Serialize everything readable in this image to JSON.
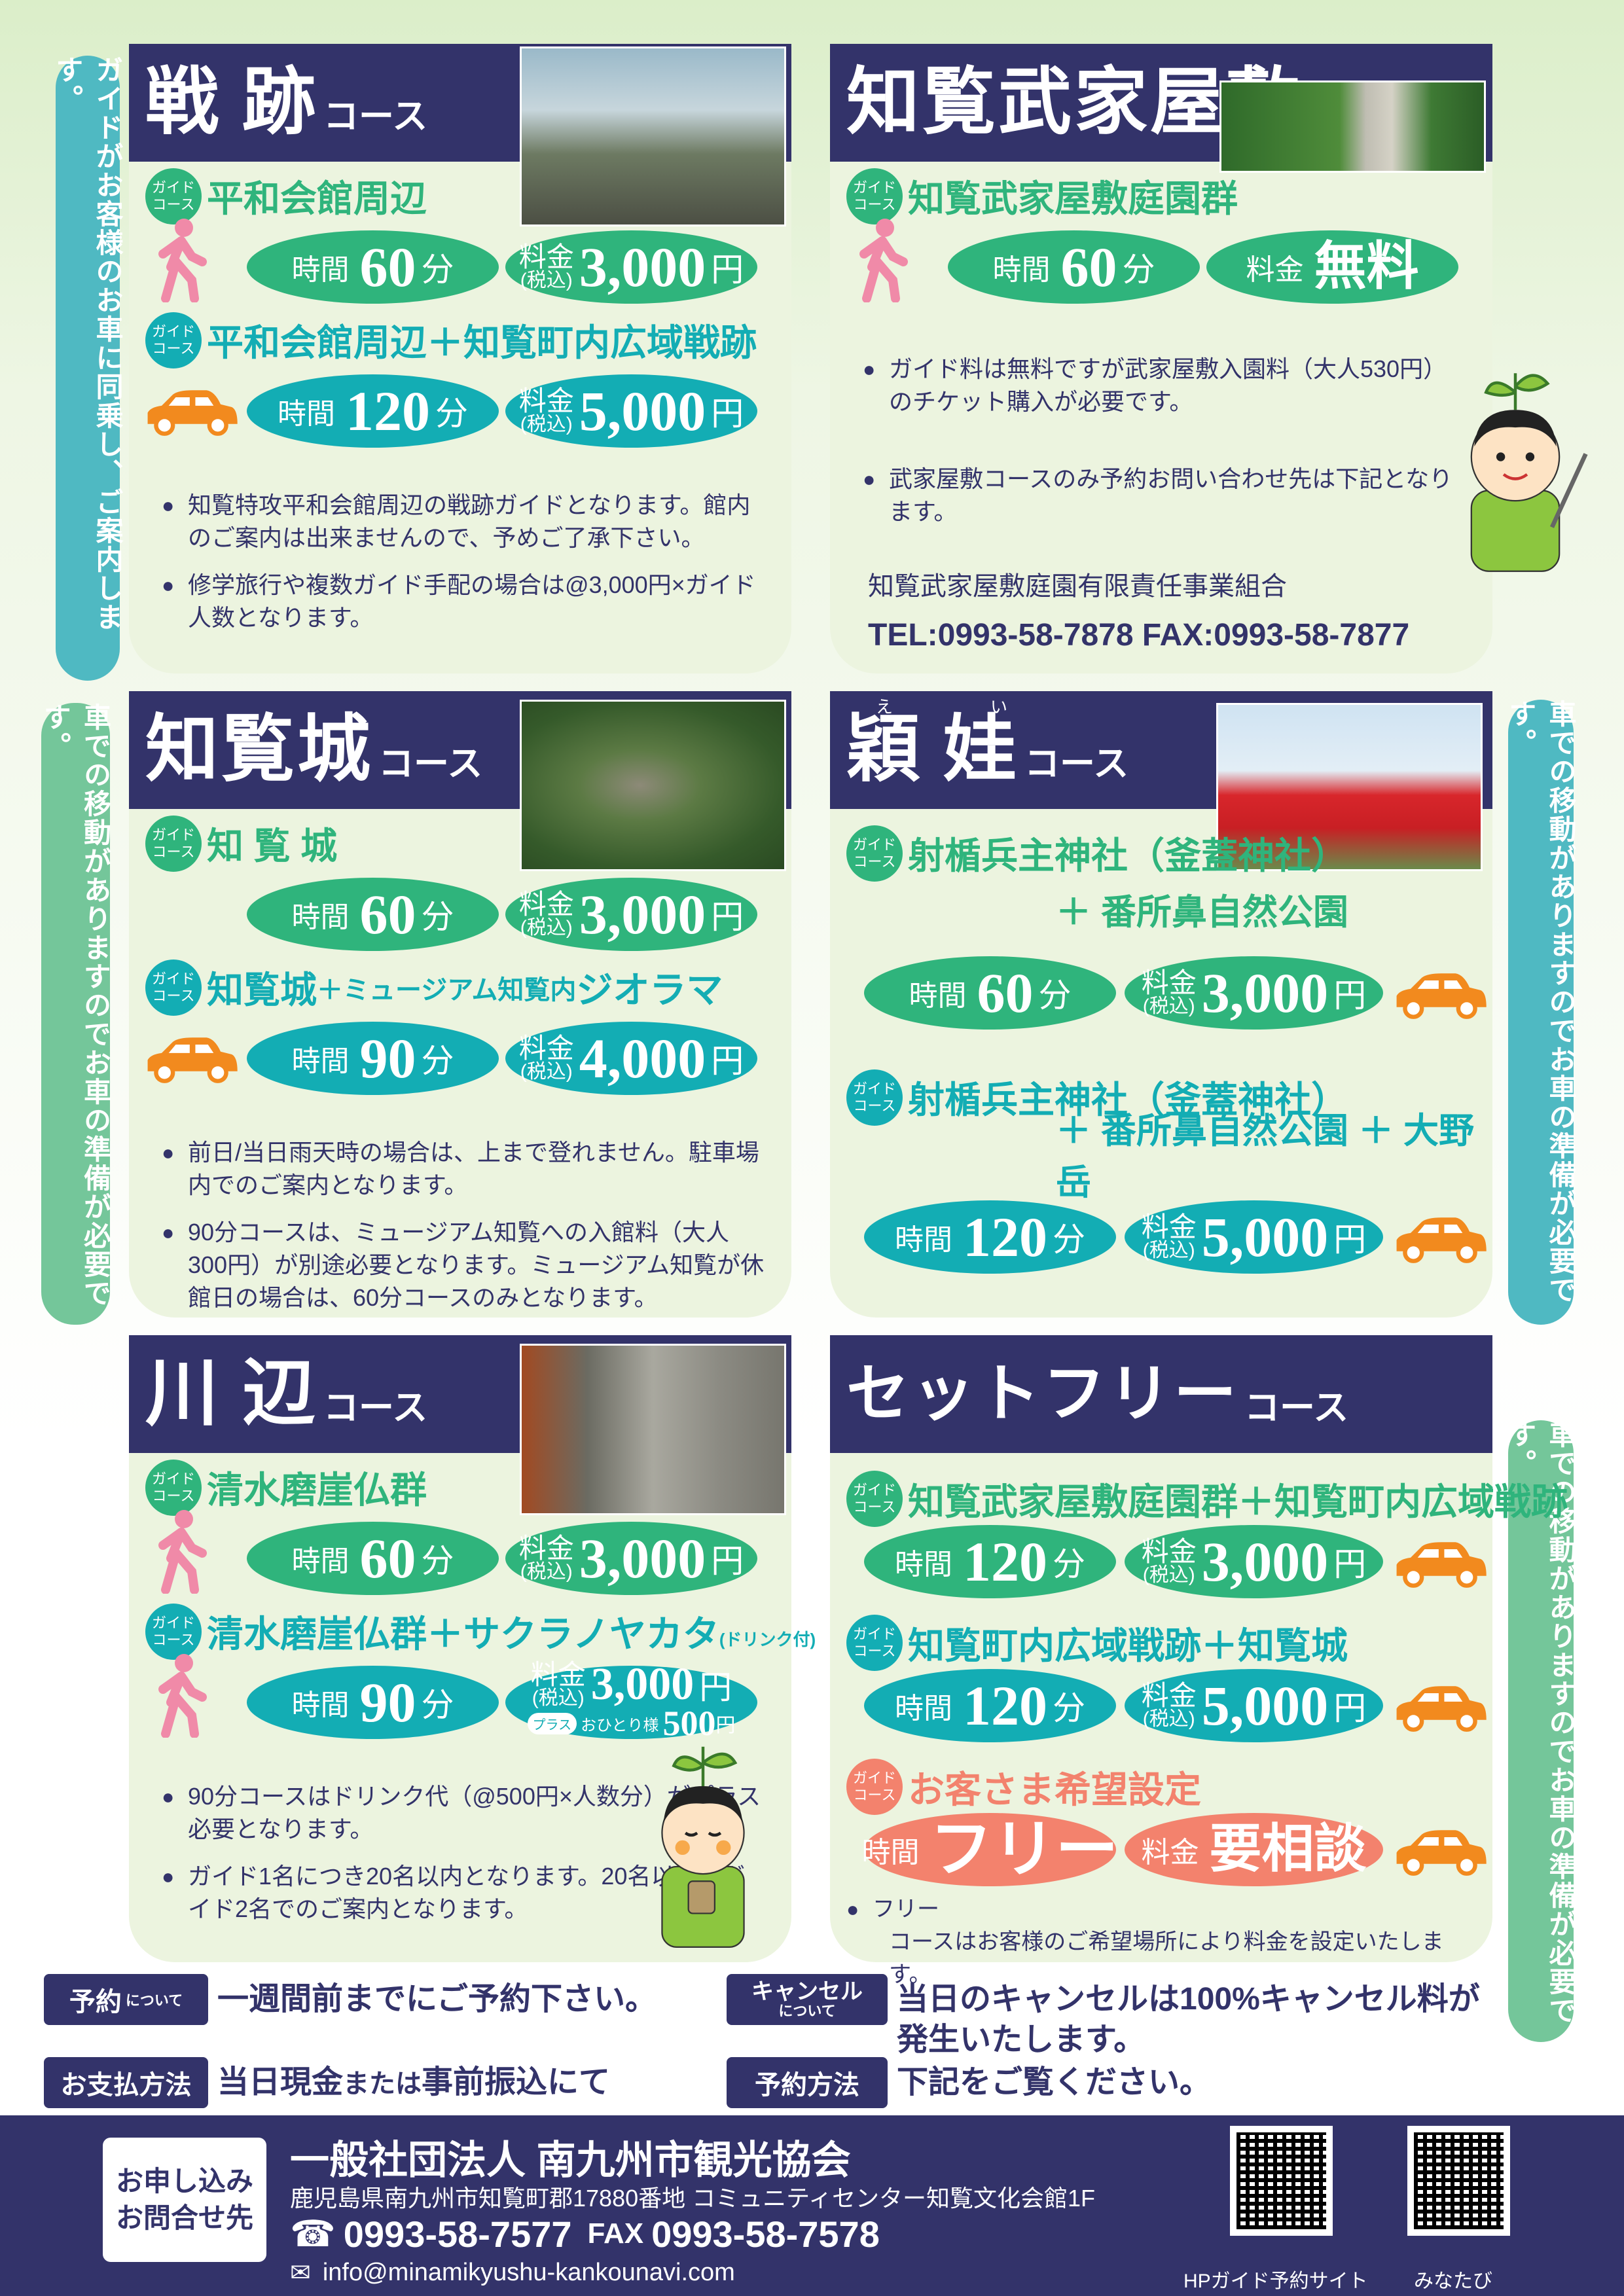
{
  "colors": {
    "navy": "#33336a",
    "green": "#2fb47c",
    "teal": "#13adb4",
    "salmon": "#f3826d",
    "car": "#f28a1e",
    "walker": "#f08aa8",
    "card_bg": "#ecf4df"
  },
  "side_notes": {
    "guide_ride": "ガイドがお客様のお車に同乗し、ご案内します。",
    "car_needed": "車での移動がありますのでお車の準備が必要です。"
  },
  "cards": [
    {
      "title": "戦 跡",
      "suffix": "コース",
      "photo": "fighter-plane-photo",
      "photo_class": "plane",
      "courses": [
        {
          "badge": [
            "ガイド",
            "コース"
          ],
          "title": "平和会館周辺",
          "color": "green",
          "icon": "walking-person-icon",
          "icon_pos": "left-walk",
          "row": "l180",
          "time_label": "時間",
          "time": "60",
          "time_unit": "分",
          "fee_label": "料金",
          "fee_tax": "(税込)",
          "fee": "3,000",
          "fee_unit": "円"
        },
        {
          "badge": [
            "ガイド",
            "コース"
          ],
          "title": "平和会館周辺＋知覧町内広域戦跡",
          "color": "teal",
          "icon": "car-icon",
          "icon_pos": "left-car",
          "row": "l180",
          "time_label": "時間",
          "time": "120",
          "time_unit": "分",
          "fee_label": "料金",
          "fee_tax": "(税込)",
          "fee": "5,000",
          "fee_unit": "円"
        }
      ],
      "notes": [
        "知覧特攻平和会館周辺の戦跡ガイドとなります。館内のご案内は出来ませんので、予めご了承下さい。",
        "修学旅行や複数ガイド手配の場合は@3,000円×ガイド人数となります。"
      ]
    },
    {
      "title": "知覧武家屋敷",
      "suffix": "コース",
      "photo": "samurai-residence-garden-photo",
      "photo_class": "garden",
      "courses": [
        {
          "badge": [
            "ガイド",
            "コース"
          ],
          "title": "知覧武家屋敷庭園群",
          "color": "green",
          "icon": "walking-person-icon",
          "icon_pos": "left-walk",
          "row": "l180",
          "time_label": "時間",
          "time": "60",
          "time_unit": "分",
          "fee_label": "料金",
          "fee": "無料"
        }
      ],
      "notes": [
        "ガイド料は無料ですが武家屋敷入園料（大人530円）のチケット購入が必要です。",
        "武家屋敷コースのみ予約お問い合わせ先は下記となります。"
      ],
      "contact": {
        "org": "知覧武家屋敷庭園有限責任事業組合",
        "tel": "TEL:0993-58-7878",
        "fax": "FAX:0993-58-7877"
      }
    },
    {
      "title": "知覧城",
      "suffix": "コース",
      "photo": "chiran-castle-aerial-photo",
      "photo_class": "castle",
      "courses": [
        {
          "badge": [
            "ガイド",
            "コース"
          ],
          "title": "知 覧 城",
          "color": "green",
          "row": "l180",
          "time_label": "時間",
          "time": "60",
          "time_unit": "分",
          "fee_label": "料金",
          "fee_tax": "(税込)",
          "fee": "3,000",
          "fee_unit": "円"
        },
        {
          "badge": [
            "ガイド",
            "コース"
          ],
          "title": "知覧城",
          "title_mid": "＋ミュージアム知覧内",
          "title_end": "ジオラマ",
          "color": "teal",
          "icon": "car-icon",
          "icon_pos": "left-car",
          "row": "l180",
          "time_label": "時間",
          "time": "90",
          "time_unit": "分",
          "fee_label": "料金",
          "fee_tax": "(税込)",
          "fee": "4,000",
          "fee_unit": "円"
        }
      ],
      "notes": [
        "前日/当日雨天時の場合は、上まで登れません。駐車場内でのご案内となります。",
        "90分コースは、ミュージアム知覧への入館料（大人300円）が別途必要となります。ミュージアム知覧が休館日の場合は、60分コースのみとなります。"
      ]
    },
    {
      "title": "穎 娃",
      "ruby": [
        "え",
        "い"
      ],
      "suffix": "コース",
      "photo": "kamafuta-shrine-photo",
      "photo_class": "shrine",
      "courses": [
        {
          "badge": [
            "ガイド",
            "コース"
          ],
          "title": "射楯兵主神社（釜蓋神社）",
          "line2": "＋ 番所鼻自然公園",
          "color": "green",
          "icon": "car-icon",
          "icon_pos": "right-car",
          "row": "l52",
          "time_label": "時間",
          "time": "60",
          "time_unit": "分",
          "fee_label": "料金",
          "fee_tax": "(税込)",
          "fee": "3,000",
          "fee_unit": "円"
        },
        {
          "badge": [
            "ガイド",
            "コース"
          ],
          "title": "射楯兵主神社（釜蓋神社）",
          "line2": "＋ 番所鼻自然公園 ＋ 大野岳",
          "color": "teal",
          "icon": "car-icon",
          "icon_pos": "right-car",
          "row": "l52",
          "time_label": "時間",
          "time": "120",
          "time_unit": "分",
          "fee_label": "料金",
          "fee_tax": "(税込)",
          "fee": "5,000",
          "fee_unit": "円"
        }
      ]
    },
    {
      "title": "川 辺",
      "suffix": "コース",
      "photo": "shimizu-cliff-buddha-photo",
      "photo_class": "cliff",
      "courses": [
        {
          "badge": [
            "ガイド",
            "コース"
          ],
          "title": "清水磨崖仏群",
          "color": "green",
          "icon": "walking-person-icon",
          "icon_pos": "left-walk",
          "row": "l180",
          "time_label": "時間",
          "time": "60",
          "time_unit": "分",
          "fee_label": "料金",
          "fee_tax": "(税込)",
          "fee": "3,000",
          "fee_unit": "円"
        },
        {
          "badge": [
            "ガイド",
            "コース"
          ],
          "title": "清水磨崖仏群＋サクラノヤカタ",
          "title_tiny": "(ドリンク付)",
          "color": "teal",
          "icon": "walking-person-icon",
          "icon_pos": "left-walk",
          "row": "l180",
          "time_label": "時間",
          "time": "90",
          "time_unit": "分",
          "fee_label": "料金",
          "fee_tax": "(税込)",
          "fee": "3,000",
          "fee_unit": "円",
          "plus": {
            "label": "プラス",
            "per_person": "おひとり様",
            "value": "500",
            "unit": "円"
          }
        }
      ],
      "notes": [
        "90分コースはドリンク代（@500円×人数分）がプラス必要となります。",
        "ガイド1名につき20名以内となります。20名以上はガイド2名でのご案内となります。"
      ]
    },
    {
      "title": "セットフリー",
      "suffix": "コース",
      "courses": [
        {
          "badge": [
            "ガイド",
            "コース"
          ],
          "title": "知覧武家屋敷庭園群＋知覧町内広域戦跡",
          "color": "green",
          "icon": "car-icon",
          "icon_pos": "right-car",
          "row": "l52",
          "time_label": "時間",
          "time": "120",
          "time_unit": "分",
          "fee_label": "料金",
          "fee_tax": "(税込)",
          "fee": "3,000",
          "fee_unit": "円"
        },
        {
          "badge": [
            "ガイド",
            "コース"
          ],
          "title": "知覧町内広域戦跡＋知覧城",
          "color": "teal",
          "icon": "car-icon",
          "icon_pos": "right-car",
          "row": "l52",
          "time_label": "時間",
          "time": "120",
          "time_unit": "分",
          "fee_label": "料金",
          "fee_tax": "(税込)",
          "fee": "5,000",
          "fee_unit": "円"
        },
        {
          "badge": [
            "ガイド",
            "コース"
          ],
          "title": "お客さま希望設定",
          "color": "salmon",
          "icon": "car-icon",
          "icon_pos": "right-car",
          "row": "l52",
          "time_label": "時間",
          "time": "フリー",
          "fee_label": "料金",
          "fee": "要相談"
        }
      ],
      "free_note": {
        "title": "フリー",
        "text": "コースはお客様のご希望場所により料金を設定いたします。"
      }
    }
  ],
  "info": {
    "reservation": {
      "label": "予約",
      "label_small": "について",
      "text": "一週間前までにご予約下さい。"
    },
    "cancel": {
      "label": "キャンセル",
      "label_small": "について",
      "text": "当日のキャンセルは100%キャンセル料が発生いたします。"
    },
    "payment": {
      "label": "お支払方法",
      "text1": "当日現金",
      "text2": "または",
      "text3": "事前振込にて"
    },
    "method": {
      "label": "予約方法",
      "text": "下記をご覧ください。"
    }
  },
  "footer": {
    "contact_label": [
      "お申し込み",
      "お問合せ先"
    ],
    "org": "一般社団法人 南九州市観光協会",
    "address": "鹿児島県南九州市知覧町郡17880番地 コミュニティセンター知覧文化会館1F",
    "tel": "0993-58-7577",
    "fax_label": "FAX",
    "fax": "0993-58-7578",
    "email": "info@minamikyushu-kankounavi.com",
    "qr": [
      {
        "label": "HPガイド予約サイト"
      },
      {
        "label": "みなたび"
      }
    ]
  }
}
